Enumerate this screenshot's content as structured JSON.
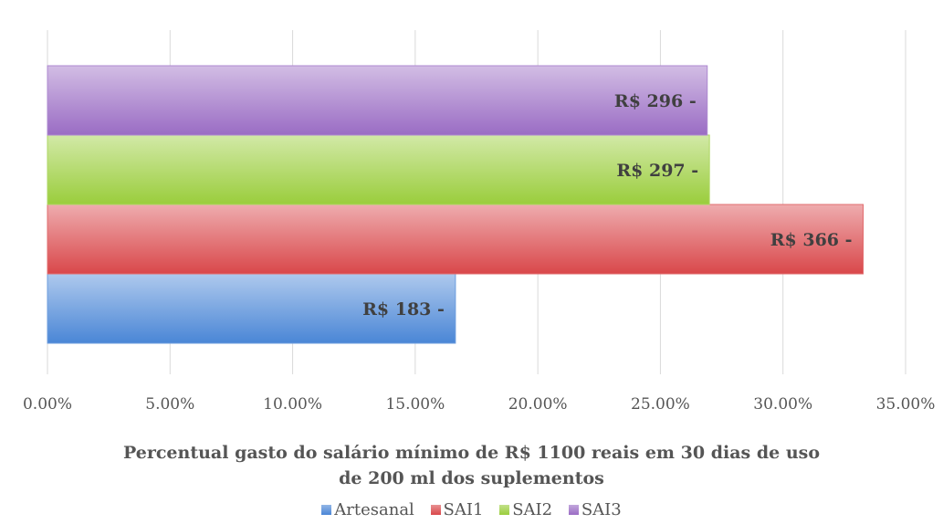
{
  "chart_data": {
    "type": "bar",
    "orientation": "horizontal",
    "xlabel_lines": [
      "Percentual gasto do salário mínimo de R$ 1100 reais em 30 dias de uso",
      "de 200 ml dos suplementos"
    ],
    "xlim": [
      0,
      35
    ],
    "xticks": [
      "0.00%",
      "5.00%",
      "10.00%",
      "15.00%",
      "20.00%",
      "25.00%",
      "30.00%",
      "35.00%"
    ],
    "grid": "vertical",
    "legend_position": "bottom",
    "series": [
      {
        "name": "Artesanal",
        "value": 16.64,
        "label": "R$ 183 -",
        "color": "#4a86d6"
      },
      {
        "name": "SAI1",
        "value": 33.27,
        "label": "R$ 366 -",
        "color": "#d9474a"
      },
      {
        "name": "SAI2",
        "value": 27.0,
        "label": "R$ 297 -",
        "color": "#9acd3c"
      },
      {
        "name": "SAI3",
        "value": 26.91,
        "label": "R$ 296 -",
        "color": "#9a6cc4"
      }
    ]
  }
}
